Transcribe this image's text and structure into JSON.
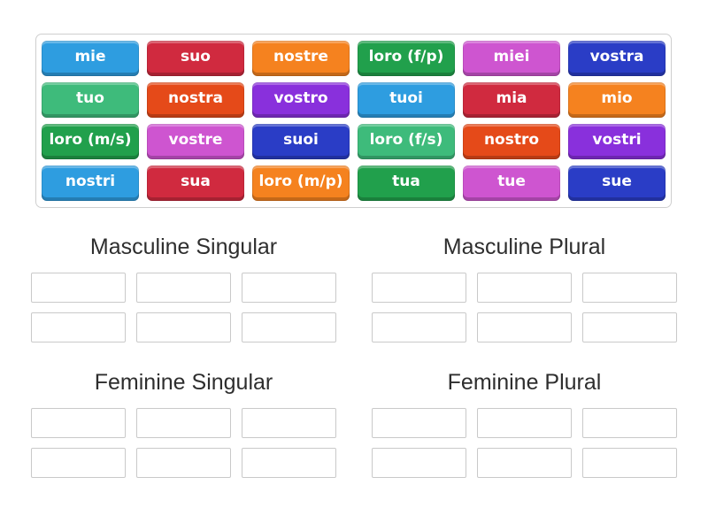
{
  "palette": {
    "blue": "#2e9de0",
    "red": "#d02a3f",
    "orange": "#f5821f",
    "green": "#21a04c",
    "orchid": "#ce55d0",
    "dark_blue": "#2a3dc6",
    "sea_green": "#3ebb7b",
    "orange_red": "#e54a19",
    "purple": "#8930dc"
  },
  "tray": {
    "tiles": [
      {
        "label": "mie",
        "color": "blue"
      },
      {
        "label": "suo",
        "color": "red"
      },
      {
        "label": "nostre",
        "color": "orange"
      },
      {
        "label": "loro (f/p)",
        "color": "green"
      },
      {
        "label": "miei",
        "color": "orchid"
      },
      {
        "label": "vostra",
        "color": "dark_blue"
      },
      {
        "label": "tuo",
        "color": "sea_green"
      },
      {
        "label": "nostra",
        "color": "orange_red"
      },
      {
        "label": "vostro",
        "color": "purple"
      },
      {
        "label": "tuoi",
        "color": "blue"
      },
      {
        "label": "mia",
        "color": "red"
      },
      {
        "label": "mio",
        "color": "orange"
      },
      {
        "label": "loro (m/s)",
        "color": "green"
      },
      {
        "label": "vostre",
        "color": "orchid"
      },
      {
        "label": "suoi",
        "color": "dark_blue"
      },
      {
        "label": "loro (f/s)",
        "color": "sea_green"
      },
      {
        "label": "nostro",
        "color": "orange_red"
      },
      {
        "label": "vostri",
        "color": "purple"
      },
      {
        "label": "nostri",
        "color": "blue"
      },
      {
        "label": "sua",
        "color": "red"
      },
      {
        "label": "loro (m/p)",
        "color": "orange"
      },
      {
        "label": "tua",
        "color": "green"
      },
      {
        "label": "tue",
        "color": "orchid"
      },
      {
        "label": "sue",
        "color": "dark_blue"
      }
    ]
  },
  "groups": [
    {
      "id": "masculine-singular",
      "title": "Masculine Singular",
      "slots": 6
    },
    {
      "id": "masculine-plural",
      "title": "Masculine Plural",
      "slots": 6
    },
    {
      "id": "feminine-singular",
      "title": "Feminine Singular",
      "slots": 6
    },
    {
      "id": "feminine-plural",
      "title": "Feminine Plural",
      "slots": 6
    }
  ]
}
